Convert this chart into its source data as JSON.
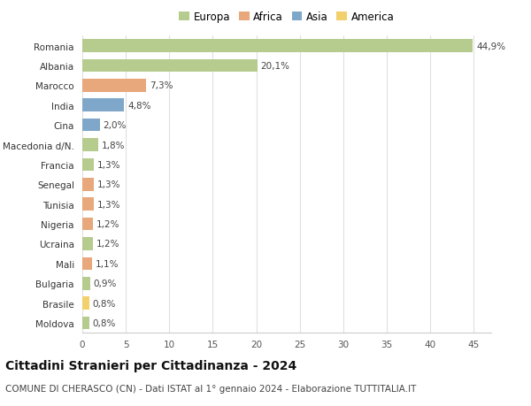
{
  "categories": [
    "Romania",
    "Albania",
    "Marocco",
    "India",
    "Cina",
    "Macedonia d/N.",
    "Francia",
    "Senegal",
    "Tunisia",
    "Nigeria",
    "Ucraina",
    "Mali",
    "Bulgaria",
    "Brasile",
    "Moldova"
  ],
  "values": [
    44.9,
    20.1,
    7.3,
    4.8,
    2.0,
    1.8,
    1.3,
    1.3,
    1.3,
    1.2,
    1.2,
    1.1,
    0.9,
    0.8,
    0.8
  ],
  "labels": [
    "44,9%",
    "20,1%",
    "7,3%",
    "4,8%",
    "2,0%",
    "1,8%",
    "1,3%",
    "1,3%",
    "1,3%",
    "1,2%",
    "1,2%",
    "1,1%",
    "0,9%",
    "0,8%",
    "0,8%"
  ],
  "continents": [
    "Europa",
    "Europa",
    "Africa",
    "Asia",
    "Asia",
    "Europa",
    "Europa",
    "Africa",
    "Africa",
    "Africa",
    "Europa",
    "Africa",
    "Europa",
    "America",
    "Europa"
  ],
  "continent_colors": {
    "Europa": "#b5cc8e",
    "Africa": "#e8a87c",
    "Asia": "#7fa7c9",
    "America": "#f2d06b"
  },
  "legend_order": [
    "Europa",
    "Africa",
    "Asia",
    "America"
  ],
  "legend_colors": [
    "#b5cc8e",
    "#e8a87c",
    "#7fa7c9",
    "#f2d06b"
  ],
  "title": "Cittadini Stranieri per Cittadinanza - 2024",
  "subtitle": "COMUNE DI CHERASCO (CN) - Dati ISTAT al 1° gennaio 2024 - Elaborazione TUTTITALIA.IT",
  "xlim": [
    0,
    47
  ],
  "xticks": [
    0,
    5,
    10,
    15,
    20,
    25,
    30,
    35,
    40,
    45
  ],
  "background_color": "#ffffff",
  "grid_color": "#e0e0e0",
  "bar_height": 0.65,
  "title_fontsize": 10,
  "subtitle_fontsize": 7.5,
  "label_fontsize": 7.5,
  "tick_fontsize": 7.5,
  "legend_fontsize": 8.5
}
